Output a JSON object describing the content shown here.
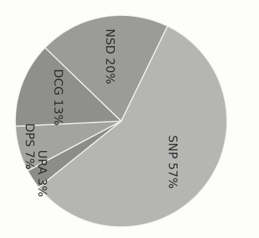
{
  "chart_data": {
    "type": "pie",
    "title": "",
    "slices": [
      {
        "label": "SNP 57%",
        "name": "SNP",
        "value": 57,
        "color": "#b5b5b3"
      },
      {
        "label": "URA 3%",
        "name": "URA",
        "value": 3,
        "color": "#8c8c8a"
      },
      {
        "label": "DPS 7%",
        "name": "DPS",
        "value": 7,
        "color": "#a3a3a1"
      },
      {
        "label": "DCG 13%",
        "name": "DCG",
        "value": 13,
        "color": "#8f8f8d"
      },
      {
        "label": "NSD 20%",
        "name": "NSD",
        "value": 20,
        "color": "#9b9b99"
      }
    ]
  }
}
